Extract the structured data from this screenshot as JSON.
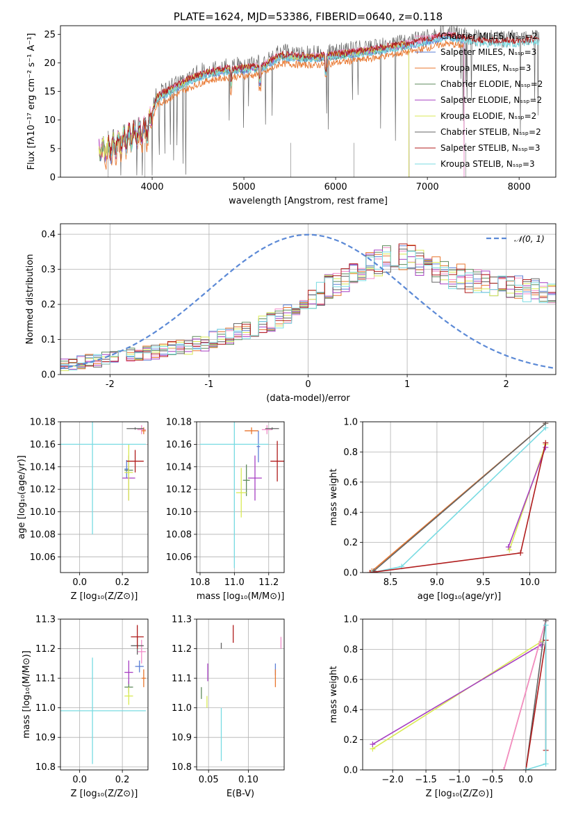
{
  "colors": {
    "chabrier_miles": "#f28cc9",
    "salpeter_miles": "#5b7fd6",
    "kroupa_miles": "#e8762e",
    "chabrier_elodie": "#5e8a5b",
    "salpeter_elodie": "#a63ec2",
    "kroupa_elodie": "#d9ea54",
    "chabrier_stelib": "#636363",
    "salpeter_stelib": "#b01c1c",
    "kroupa_stelib": "#78dbe2",
    "normal_curve": "#5b89d6",
    "grid": "#b0b0b0"
  },
  "chart_data": [
    {
      "id": "spectrum",
      "type": "line",
      "title": "PLATE=1624, MJD=53386, FIBERID=0640, z=0.118",
      "xlabel": "wavelength [Angstrom, rest frame]",
      "ylabel": "Flux [fλ10⁻¹⁷ erg cm⁻² s⁻¹ A⁻¹]",
      "xlim": [
        3000,
        8400
      ],
      "ylim": [
        0,
        26.5
      ],
      "xticks": [
        4000,
        5000,
        6000,
        7000,
        8000
      ],
      "yticks": [
        0,
        5,
        10,
        15,
        20,
        25
      ],
      "grid": false,
      "legend_position": "top-right",
      "legend": [
        {
          "label": "Chabrier MILES, Nₛₛₚ=2",
          "color_key": "chabrier_miles"
        },
        {
          "label": "Salpeter MILES, Nₛₛₚ=3",
          "color_key": "salpeter_miles"
        },
        {
          "label": "Kroupa MILES, Nₛₛₚ=3",
          "color_key": "kroupa_miles"
        },
        {
          "label": "Chabrier ELODIE, Nₛₛₚ=2",
          "color_key": "chabrier_elodie"
        },
        {
          "label": "Salpeter ELODIE, Nₛₛₚ=2",
          "color_key": "salpeter_elodie"
        },
        {
          "label": "Kroupa ELODIE, Nₛₛₚ=2",
          "color_key": "kroupa_elodie"
        },
        {
          "label": "Chabrier STELIB, Nₛₛₚ=2",
          "color_key": "chabrier_stelib"
        },
        {
          "label": "Salpeter STELIB, Nₛₛₚ=3",
          "color_key": "salpeter_stelib"
        },
        {
          "label": "Kroupa STELIB, Nₛₛₚ=3",
          "color_key": "kroupa_stelib"
        }
      ],
      "continuum": [
        [
          3400,
          5.6
        ],
        [
          3520,
          5.0
        ],
        [
          3650,
          6.5
        ],
        [
          3800,
          7.8
        ],
        [
          3950,
          8.5
        ],
        [
          4050,
          14.2
        ],
        [
          4200,
          15.5
        ],
        [
          4400,
          17.2
        ],
        [
          4600,
          18.5
        ],
        [
          4800,
          19.0
        ],
        [
          5000,
          19.3
        ],
        [
          5200,
          19.6
        ],
        [
          5400,
          21.5
        ],
        [
          5600,
          21.3
        ],
        [
          5800,
          21.2
        ],
        [
          6000,
          21.6
        ],
        [
          6200,
          22.0
        ],
        [
          6400,
          22.4
        ],
        [
          6600,
          23.0
        ],
        [
          6800,
          23.5
        ],
        [
          7000,
          24.2
        ],
        [
          7200,
          25.0
        ],
        [
          7400,
          24.5
        ],
        [
          7600,
          24.0
        ],
        [
          7800,
          23.8
        ],
        [
          8000,
          24.0
        ],
        [
          8200,
          24.3
        ]
      ],
      "model_offsets": [
        0,
        -0.6,
        -1.6,
        -0.4,
        -0.3,
        -0.2,
        0.3,
        0.0,
        -0.6
      ]
    },
    {
      "id": "residuals",
      "type": "step",
      "xlabel": "(data-model)/error",
      "ylabel": "Normed distribution",
      "xlim": [
        -2.5,
        2.5
      ],
      "ylim": [
        0,
        0.43
      ],
      "xticks": [
        -2,
        -1,
        0,
        1,
        2
      ],
      "yticks": [
        0.0,
        0.1,
        0.2,
        0.3,
        0.4
      ],
      "grid": true,
      "legend_position": "top-right",
      "legend": [
        {
          "label": "𝒩(0, 1)",
          "color_key": "normal_curve"
        }
      ],
      "bin_width": 0.1,
      "base_shape": [
        0.03,
        0.03,
        0.035,
        0.04,
        0.04,
        0.045,
        0.05,
        0.05,
        0.055,
        0.06,
        0.06,
        0.065,
        0.07,
        0.075,
        0.08,
        0.08,
        0.09,
        0.09,
        0.1,
        0.105,
        0.11,
        0.12,
        0.125,
        0.13,
        0.14,
        0.15,
        0.16,
        0.17,
        0.18,
        0.19,
        0.21,
        0.23,
        0.25,
        0.26,
        0.27,
        0.28,
        0.3,
        0.31,
        0.32,
        0.33,
        0.34,
        0.34,
        0.33,
        0.32,
        0.31,
        0.3,
        0.29,
        0.28,
        0.28,
        0.27,
        0.27,
        0.26,
        0.26,
        0.255,
        0.25,
        0.25,
        0.24,
        0.24,
        0.23,
        0.23
      ]
    },
    {
      "id": "age_vs_Z",
      "type": "scatter",
      "xlabel": "Z [log₁₀(Z/Z⊙)]",
      "ylabel": "age  [log₁₀(age/yr)]",
      "xlim": [
        -0.09,
        0.32
      ],
      "ylim": [
        10.046,
        10.18
      ],
      "xticks": [
        0.0,
        0.2
      ],
      "xtick_labels": [
        "0.0",
        "0.2"
      ],
      "yticks": [
        10.06,
        10.08,
        10.1,
        10.12,
        10.14,
        10.16,
        10.18
      ],
      "grid": true,
      "points": [
        {
          "x": 0.29,
          "y": 10.173,
          "xerr": 0.02,
          "yerr": 0.004,
          "color_key": "chabrier_miles"
        },
        {
          "x": 0.22,
          "y": 10.138,
          "xerr": 0.01,
          "yerr": 0.008,
          "color_key": "salpeter_miles"
        },
        {
          "x": 0.3,
          "y": 10.172,
          "xerr": 0.01,
          "yerr": 0.003,
          "color_key": "kroupa_miles"
        },
        {
          "x": 0.23,
          "y": 10.137,
          "xerr": 0.02,
          "yerr": 0.004,
          "color_key": "chabrier_elodie"
        },
        {
          "x": 0.23,
          "y": 10.13,
          "xerr": 0.03,
          "yerr": 0.02,
          "color_key": "salpeter_elodie"
        },
        {
          "x": 0.23,
          "y": 10.135,
          "xerr": 0.02,
          "yerr": 0.025,
          "color_key": "kroupa_elodie"
        },
        {
          "x": 0.26,
          "y": 10.174,
          "xerr": 0.04,
          "yerr": 0.001,
          "color_key": "chabrier_stelib"
        },
        {
          "x": 0.26,
          "y": 10.145,
          "xerr": 0.04,
          "yerr": 0.01,
          "color_key": "salpeter_stelib"
        },
        {
          "x": 0.06,
          "y": 10.16,
          "xerr": 0.25,
          "yerr": 0.08,
          "color_key": "kroupa_stelib"
        }
      ]
    },
    {
      "id": "age_vs_mass",
      "type": "scatter",
      "xlabel": "mass [log₁₀(M/M⊙)]",
      "ylabel": "",
      "xlim": [
        10.78,
        11.29
      ],
      "ylim": [
        10.046,
        10.18
      ],
      "xticks": [
        10.8,
        11.0,
        11.2
      ],
      "xtick_labels": [
        "10.8",
        "11.0",
        "11.2"
      ],
      "yticks": [
        10.06,
        10.08,
        10.1,
        10.12,
        10.14,
        10.16,
        10.18
      ],
      "grid": true,
      "points": [
        {
          "x": 11.19,
          "y": 10.173,
          "xerr": 0.03,
          "yerr": 0.004,
          "color_key": "chabrier_miles"
        },
        {
          "x": 11.14,
          "y": 10.158,
          "xerr": 0.01,
          "yerr": 0.014,
          "color_key": "salpeter_miles"
        },
        {
          "x": 11.1,
          "y": 10.172,
          "xerr": 0.04,
          "yerr": 0.003,
          "color_key": "kroupa_miles"
        },
        {
          "x": 11.07,
          "y": 10.128,
          "xerr": 0.02,
          "yerr": 0.014,
          "color_key": "chabrier_elodie"
        },
        {
          "x": 11.12,
          "y": 10.13,
          "xerr": 0.04,
          "yerr": 0.02,
          "color_key": "salpeter_elodie"
        },
        {
          "x": 11.04,
          "y": 10.117,
          "xerr": 0.03,
          "yerr": 0.022,
          "color_key": "kroupa_elodie"
        },
        {
          "x": 11.22,
          "y": 10.174,
          "xerr": 0.04,
          "yerr": 0.001,
          "color_key": "chabrier_stelib"
        },
        {
          "x": 11.25,
          "y": 10.145,
          "xerr": 0.04,
          "yerr": 0.018,
          "color_key": "salpeter_stelib"
        },
        {
          "x": 11.0,
          "y": 10.16,
          "xerr": 0.2,
          "yerr": 0.11,
          "color_key": "kroupa_stelib"
        }
      ]
    },
    {
      "id": "weight_vs_age",
      "type": "line",
      "xlabel": "age  [log₁₀(age/yr)]",
      "ylabel": "mass weight",
      "xlim": [
        8.2,
        10.28
      ],
      "ylim": [
        0,
        1
      ],
      "xticks": [
        8.5,
        9.0,
        9.5,
        10.0
      ],
      "xtick_labels": [
        "8.5",
        "9.0",
        "9.5",
        "10.0"
      ],
      "yticks": [
        0.0,
        0.2,
        0.4,
        0.6,
        0.8,
        1.0
      ],
      "grid": true,
      "series": [
        {
          "color_key": "kroupa_elodie",
          "x": [
            9.78,
            10.17
          ],
          "y": [
            0.15,
            0.85
          ]
        },
        {
          "color_key": "salpeter_elodie",
          "x": [
            9.77,
            10.17
          ],
          "y": [
            0.17,
            0.83
          ]
        },
        {
          "color_key": "kroupa_miles",
          "x": [
            8.3,
            10.17
          ],
          "y": [
            0.01,
            0.99
          ]
        },
        {
          "color_key": "chabrier_stelib",
          "x": [
            8.32,
            10.17
          ],
          "y": [
            0.01,
            0.99
          ]
        },
        {
          "color_key": "kroupa_stelib",
          "x": [
            8.3,
            8.62,
            10.17
          ],
          "y": [
            0.0,
            0.04,
            0.96
          ]
        },
        {
          "color_key": "salpeter_stelib",
          "x": [
            8.28,
            9.9,
            10.17
          ],
          "y": [
            0.0,
            0.13,
            0.86
          ]
        }
      ]
    },
    {
      "id": "mass_vs_Z",
      "type": "scatter",
      "xlabel": "Z [log₁₀(Z/Z⊙)]",
      "ylabel": "mass [log₁₀(M/M⊙)]",
      "xlim": [
        -0.09,
        0.32
      ],
      "ylim": [
        10.79,
        11.3
      ],
      "xticks": [
        0.0,
        0.2
      ],
      "xtick_labels": [
        "0.0",
        "0.2"
      ],
      "yticks": [
        10.8,
        10.9,
        11.0,
        11.1,
        11.2,
        11.3
      ],
      "grid": true,
      "points": [
        {
          "x": 0.29,
          "y": 11.19,
          "xerr": 0.02,
          "yerr": 0.04,
          "color_key": "chabrier_miles"
        },
        {
          "x": 0.28,
          "y": 11.14,
          "xerr": 0.02,
          "yerr": 0.02,
          "color_key": "salpeter_miles"
        },
        {
          "x": 0.3,
          "y": 11.1,
          "xerr": 0.01,
          "yerr": 0.03,
          "color_key": "kroupa_miles"
        },
        {
          "x": 0.23,
          "y": 11.07,
          "xerr": 0.02,
          "yerr": 0.02,
          "color_key": "chabrier_elodie"
        },
        {
          "x": 0.23,
          "y": 11.12,
          "xerr": 0.02,
          "yerr": 0.04,
          "color_key": "salpeter_elodie"
        },
        {
          "x": 0.23,
          "y": 11.04,
          "xerr": 0.02,
          "yerr": 0.03,
          "color_key": "kroupa_elodie"
        },
        {
          "x": 0.27,
          "y": 11.21,
          "xerr": 0.03,
          "yerr": 0.03,
          "color_key": "chabrier_stelib"
        },
        {
          "x": 0.27,
          "y": 11.24,
          "xerr": 0.03,
          "yerr": 0.04,
          "color_key": "salpeter_stelib"
        },
        {
          "x": 0.06,
          "y": 10.99,
          "xerr": 0.25,
          "yerr": 0.18,
          "color_key": "kroupa_stelib"
        }
      ]
    },
    {
      "id": "mass_vs_ebv",
      "type": "scatter",
      "xlabel": "E(B-V)",
      "ylabel": "",
      "xlim": [
        0.035,
        0.145
      ],
      "ylim": [
        10.79,
        11.3
      ],
      "xticks": [
        0.05,
        0.1
      ],
      "xtick_labels": [
        "0.05",
        "0.10"
      ],
      "yticks": [
        10.8,
        10.9,
        11.0,
        11.1,
        11.2,
        11.3
      ],
      "grid": true,
      "points": [
        {
          "x": 0.141,
          "y": 11.22,
          "xerr": 0.0,
          "yerr": 0.02,
          "color_key": "chabrier_miles"
        },
        {
          "x": 0.134,
          "y": 11.13,
          "xerr": 0.0,
          "yerr": 0.02,
          "color_key": "salpeter_miles"
        },
        {
          "x": 0.134,
          "y": 11.1,
          "xerr": 0.0,
          "yerr": 0.03,
          "color_key": "kroupa_miles"
        },
        {
          "x": 0.041,
          "y": 11.05,
          "xerr": 0.0,
          "yerr": 0.02,
          "color_key": "chabrier_elodie"
        },
        {
          "x": 0.049,
          "y": 11.12,
          "xerr": 0.0,
          "yerr": 0.03,
          "color_key": "salpeter_elodie"
        },
        {
          "x": 0.048,
          "y": 11.02,
          "xerr": 0.0,
          "yerr": 0.02,
          "color_key": "kroupa_elodie"
        },
        {
          "x": 0.066,
          "y": 11.21,
          "xerr": 0.0,
          "yerr": 0.01,
          "color_key": "chabrier_stelib"
        },
        {
          "x": 0.081,
          "y": 11.25,
          "xerr": 0.0,
          "yerr": 0.03,
          "color_key": "salpeter_stelib"
        },
        {
          "x": 0.066,
          "y": 10.91,
          "xerr": 0.0,
          "yerr": 0.09,
          "color_key": "kroupa_stelib"
        }
      ]
    },
    {
      "id": "weight_vs_Z",
      "type": "line",
      "xlabel": "Z [log₁₀(Z/Z⊙)]",
      "ylabel": "mass weight",
      "xlim": [
        -2.45,
        0.45
      ],
      "ylim": [
        0,
        1
      ],
      "xticks": [
        -2.0,
        -1.5,
        -1.0,
        -0.5,
        0.0
      ],
      "xtick_labels": [
        "−2.0",
        "−1.5",
        "−1.0",
        "−0.5",
        "0.0"
      ],
      "yticks": [
        0.0,
        0.2,
        0.4,
        0.6,
        0.8,
        1.0
      ],
      "grid": true,
      "series": [
        {
          "color_key": "kroupa_elodie",
          "x": [
            -2.3,
            0.23
          ],
          "y": [
            0.14,
            0.85
          ]
        },
        {
          "color_key": "salpeter_elodie",
          "x": [
            -2.3,
            0.23
          ],
          "y": [
            0.17,
            0.83
          ]
        },
        {
          "color_key": "kroupa_miles",
          "x": [
            -0.33,
            0.3
          ],
          "y": [
            0.0,
            0.99
          ]
        },
        {
          "color_key": "chabrier_miles",
          "x": [
            -0.33,
            0.3
          ],
          "y": [
            0.0,
            0.99
          ]
        },
        {
          "color_key": "chabrier_stelib",
          "x": [
            0.0,
            0.3
          ],
          "y": [
            0.0,
            0.99
          ]
        },
        {
          "color_key": "salpeter_stelib",
          "x": [
            0.0,
            0.3,
            0.3
          ],
          "y": [
            0.0,
            0.86,
            0.13
          ]
        },
        {
          "color_key": "kroupa_stelib",
          "x": [
            0.0,
            0.3,
            0.3
          ],
          "y": [
            0.0,
            0.04,
            0.96
          ]
        }
      ]
    }
  ]
}
